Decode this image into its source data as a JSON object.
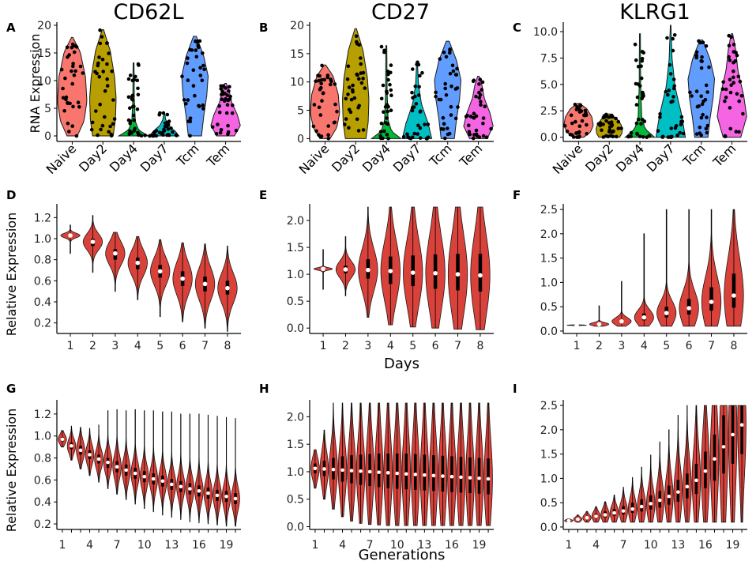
{
  "chart_data": [
    {
      "panel": "A",
      "type": "violin",
      "title": "CD62L",
      "ylabel": "RNA Expression",
      "categories": [
        "Naive",
        "Day2",
        "Day4",
        "Day7",
        "Tcm",
        "Tem"
      ],
      "colors": [
        "#F8766D",
        "#B79F00",
        "#00BA38",
        "#00BFC4",
        "#619CFF",
        "#F564E3"
      ],
      "ylim": [
        -1,
        20
      ],
      "yticks": [
        0,
        5,
        10,
        15,
        20
      ],
      "max_values": [
        17.8,
        19.2,
        13.2,
        4.2,
        18,
        9.5
      ]
    },
    {
      "panel": "B",
      "type": "violin",
      "title": "CD27",
      "ylabel": "",
      "categories": [
        "Naive",
        "Day2",
        "Day4",
        "Day7",
        "Tcm",
        "Tem"
      ],
      "colors": [
        "#F8766D",
        "#B79F00",
        "#00BA38",
        "#00BFC4",
        "#619CFF",
        "#F564E3"
      ],
      "ylim": [
        -0.5,
        20
      ],
      "yticks": [
        0,
        5,
        10,
        15,
        20
      ],
      "max_values": [
        13,
        19.4,
        16.4,
        13.6,
        17.2,
        11
      ]
    },
    {
      "panel": "C",
      "type": "violin",
      "title": "KLRG1",
      "ylabel": "",
      "categories": [
        "Naive",
        "Day2",
        "Day4",
        "Day7",
        "Tcm",
        "Tem"
      ],
      "colors": [
        "#F8766D",
        "#B79F00",
        "#00BA38",
        "#00BFC4",
        "#619CFF",
        "#F564E3"
      ],
      "ylim": [
        -0.4,
        10.6
      ],
      "yticks": [
        0.0,
        2.5,
        5.0,
        7.5,
        10.0
      ],
      "ytick_labels": [
        "0.0",
        "2.5",
        "5.0",
        "7.5",
        "10.0"
      ],
      "max_values": [
        3.2,
        2.2,
        9.8,
        10.6,
        9.2,
        9.8
      ]
    },
    {
      "panel": "D",
      "type": "violin",
      "title": "",
      "ylabel": "Relative Expression",
      "xlabel": "",
      "categories": [
        "1",
        "2",
        "3",
        "4",
        "5",
        "6",
        "7",
        "8"
      ],
      "ylim": [
        0.1,
        1.3
      ],
      "yticks": [
        0.2,
        0.4,
        0.6,
        0.8,
        1.0,
        1.2
      ],
      "ytick_labels": [
        "0.2",
        "0.4",
        "0.6",
        "0.8",
        "1.0",
        "1.2"
      ],
      "medians": [
        1.03,
        0.97,
        0.86,
        0.77,
        0.69,
        0.62,
        0.57,
        0.53
      ],
      "q1": [
        1.02,
        0.93,
        0.8,
        0.71,
        0.63,
        0.55,
        0.5,
        0.47
      ],
      "q3": [
        1.04,
        1.0,
        0.9,
        0.82,
        0.75,
        0.69,
        0.64,
        0.6
      ],
      "min": [
        0.86,
        0.68,
        0.5,
        0.42,
        0.26,
        0.21,
        0.15,
        0.12
      ],
      "max": [
        1.13,
        1.22,
        1.06,
        1.02,
        0.99,
        0.96,
        0.95,
        0.93
      ]
    },
    {
      "panel": "E",
      "type": "violin",
      "title": "",
      "ylabel": "",
      "xlabel": "Days",
      "categories": [
        "1",
        "2",
        "3",
        "4",
        "5",
        "6",
        "7",
        "8"
      ],
      "ylim": [
        -0.1,
        2.25
      ],
      "yticks": [
        0.0,
        0.5,
        1.0,
        1.5,
        2.0
      ],
      "ytick_labels": [
        "0.0",
        "0.5",
        "1.0",
        "1.5",
        "2.0"
      ],
      "medians": [
        1.1,
        1.09,
        1.08,
        1.06,
        1.03,
        1.02,
        1.0,
        0.98
      ],
      "q1": [
        1.09,
        1.02,
        0.92,
        0.82,
        0.78,
        0.73,
        0.7,
        0.68
      ],
      "q3": [
        1.11,
        1.16,
        1.28,
        1.33,
        1.35,
        1.37,
        1.38,
        1.38
      ],
      "min": [
        0.72,
        0.6,
        0.2,
        0.06,
        0.02,
        0.0,
        -0.02,
        -0.03
      ],
      "max": [
        1.46,
        1.7,
        2.25,
        2.25,
        2.25,
        2.25,
        2.25,
        2.25
      ]
    },
    {
      "panel": "F",
      "type": "violin",
      "title": "",
      "ylabel": "",
      "xlabel": "",
      "categories": [
        "1",
        "2",
        "3",
        "4",
        "5",
        "6",
        "7",
        "8"
      ],
      "ylim": [
        -0.05,
        2.55
      ],
      "yticks": [
        0.0,
        0.5,
        1.0,
        1.5,
        2.0,
        2.5
      ],
      "ytick_labels": [
        "0.0",
        "0.5",
        "1.0",
        "1.5",
        "2.0",
        "2.5"
      ],
      "medians": [
        0.12,
        0.14,
        0.2,
        0.28,
        0.37,
        0.47,
        0.6,
        0.73
      ],
      "q1": [
        0.12,
        0.13,
        0.17,
        0.22,
        0.28,
        0.34,
        0.42,
        0.48
      ],
      "q3": [
        0.12,
        0.16,
        0.24,
        0.36,
        0.5,
        0.66,
        0.9,
        1.18
      ],
      "min": [
        0.11,
        0.1,
        0.1,
        0.1,
        0.1,
        0.1,
        0.1,
        0.1
      ],
      "max": [
        0.15,
        0.52,
        1.02,
        2.0,
        2.5,
        2.5,
        2.5,
        2.5
      ]
    },
    {
      "panel": "G",
      "type": "violin",
      "title": "",
      "ylabel": "Relative Expression",
      "xlabel": "",
      "categories": [
        "1",
        "2",
        "3",
        "4",
        "5",
        "6",
        "7",
        "8",
        "9",
        "10",
        "11",
        "12",
        "13",
        "14",
        "15",
        "16",
        "17",
        "18",
        "19",
        "20"
      ],
      "xtick_labels": [
        "1",
        "4",
        "7",
        "10",
        "13",
        "16",
        "19"
      ],
      "xtick_positions": [
        1,
        4,
        7,
        10,
        13,
        16,
        19
      ],
      "ylim": [
        0.15,
        1.3
      ],
      "yticks": [
        0.2,
        0.4,
        0.6,
        0.8,
        1.0,
        1.2
      ],
      "ytick_labels": [
        "0.2",
        "0.4",
        "0.6",
        "0.8",
        "1.0",
        "1.2"
      ],
      "medians": [
        0.97,
        0.91,
        0.87,
        0.83,
        0.79,
        0.76,
        0.72,
        0.69,
        0.66,
        0.63,
        0.61,
        0.59,
        0.56,
        0.54,
        0.52,
        0.5,
        0.48,
        0.46,
        0.45,
        0.43
      ],
      "q1": [
        0.95,
        0.88,
        0.83,
        0.79,
        0.75,
        0.71,
        0.67,
        0.64,
        0.61,
        0.58,
        0.56,
        0.54,
        0.51,
        0.49,
        0.47,
        0.45,
        0.43,
        0.41,
        0.4,
        0.38
      ],
      "q3": [
        0.99,
        0.94,
        0.91,
        0.87,
        0.83,
        0.8,
        0.77,
        0.74,
        0.71,
        0.68,
        0.66,
        0.64,
        0.61,
        0.59,
        0.57,
        0.55,
        0.53,
        0.51,
        0.5,
        0.48
      ],
      "min": [
        0.9,
        0.78,
        0.7,
        0.64,
        0.58,
        0.52,
        0.47,
        0.42,
        0.38,
        0.34,
        0.31,
        0.28,
        0.26,
        0.24,
        0.22,
        0.21,
        0.2,
        0.19,
        0.18,
        0.18
      ],
      "max": [
        1.05,
        1.09,
        1.08,
        1.07,
        1.1,
        1.23,
        1.24,
        1.23,
        1.24,
        1.23,
        1.23,
        1.22,
        1.22,
        1.2,
        1.2,
        1.2,
        1.19,
        1.18,
        1.17,
        1.16
      ]
    },
    {
      "panel": "H",
      "type": "violin",
      "title": "",
      "ylabel": "",
      "xlabel": "Generations",
      "categories": [
        "1",
        "2",
        "3",
        "4",
        "5",
        "6",
        "7",
        "8",
        "9",
        "10",
        "11",
        "12",
        "13",
        "14",
        "15",
        "16",
        "17",
        "18",
        "19",
        "20"
      ],
      "xtick_labels": [
        "1",
        "4",
        "7",
        "10",
        "13",
        "16",
        "19"
      ],
      "xtick_positions": [
        1,
        4,
        7,
        10,
        13,
        16,
        19
      ],
      "ylim": [
        -0.05,
        2.25
      ],
      "yticks": [
        0.0,
        0.5,
        1.0,
        1.5,
        2.0
      ],
      "ytick_labels": [
        "0.0",
        "0.5",
        "1.0",
        "1.5",
        "2.0"
      ],
      "medians": [
        1.06,
        1.05,
        1.04,
        1.03,
        1.02,
        1.01,
        1.0,
        0.99,
        0.98,
        0.97,
        0.96,
        0.95,
        0.94,
        0.93,
        0.92,
        0.91,
        0.9,
        0.89,
        0.88,
        0.87
      ],
      "q1": [
        0.97,
        0.92,
        0.86,
        0.82,
        0.79,
        0.76,
        0.74,
        0.72,
        0.7,
        0.69,
        0.68,
        0.67,
        0.66,
        0.65,
        0.64,
        0.63,
        0.62,
        0.61,
        0.6,
        0.59
      ],
      "q3": [
        1.15,
        1.2,
        1.25,
        1.28,
        1.3,
        1.31,
        1.32,
        1.33,
        1.33,
        1.33,
        1.33,
        1.32,
        1.31,
        1.3,
        1.29,
        1.28,
        1.27,
        1.26,
        1.25,
        1.24
      ],
      "min": [
        0.7,
        0.5,
        0.32,
        0.18,
        0.1,
        0.06,
        0.04,
        0.03,
        0.02,
        0.02,
        0.02,
        0.02,
        0.02,
        0.02,
        0.02,
        0.02,
        0.02,
        0.02,
        0.02,
        0.02
      ],
      "max": [
        1.4,
        1.76,
        2.25,
        2.25,
        2.25,
        2.25,
        2.25,
        2.25,
        2.25,
        2.25,
        2.25,
        2.25,
        2.25,
        2.25,
        2.25,
        2.25,
        2.25,
        2.25,
        2.25,
        2.25
      ]
    },
    {
      "panel": "I",
      "type": "violin",
      "title": "",
      "ylabel": "",
      "xlabel": "",
      "categories": [
        "1",
        "2",
        "3",
        "4",
        "5",
        "6",
        "7",
        "8",
        "9",
        "10",
        "11",
        "12",
        "13",
        "14",
        "15",
        "16",
        "17",
        "18",
        "19",
        "20"
      ],
      "xtick_labels": [
        "1",
        "4",
        "7",
        "10",
        "13",
        "16",
        "19"
      ],
      "xtick_positions": [
        1,
        4,
        7,
        10,
        13,
        16,
        19
      ],
      "ylim": [
        -0.05,
        2.55
      ],
      "yticks": [
        0.0,
        0.5,
        1.0,
        1.5,
        2.0,
        2.5
      ],
      "ytick_labels": [
        "0.0",
        "0.5",
        "1.0",
        "1.5",
        "2.0",
        "2.5"
      ],
      "medians": [
        0.13,
        0.16,
        0.19,
        0.22,
        0.25,
        0.29,
        0.33,
        0.37,
        0.42,
        0.48,
        0.55,
        0.63,
        0.72,
        0.83,
        0.96,
        1.15,
        1.4,
        1.65,
        1.9,
        2.1
      ],
      "q1": [
        0.12,
        0.14,
        0.16,
        0.18,
        0.2,
        0.23,
        0.26,
        0.29,
        0.32,
        0.36,
        0.4,
        0.46,
        0.52,
        0.59,
        0.68,
        0.8,
        0.95,
        1.1,
        1.3,
        1.5
      ],
      "q3": [
        0.14,
        0.18,
        0.22,
        0.27,
        0.32,
        0.37,
        0.43,
        0.5,
        0.57,
        0.65,
        0.74,
        0.85,
        0.97,
        1.1,
        1.3,
        1.55,
        1.9,
        2.3,
        2.5,
        2.5
      ],
      "min": [
        0.11,
        0.1,
        0.1,
        0.1,
        0.1,
        0.1,
        0.1,
        0.1,
        0.1,
        0.1,
        0.1,
        0.1,
        0.1,
        0.1,
        0.1,
        0.1,
        0.1,
        0.1,
        0.1,
        0.1
      ],
      "max": [
        0.17,
        0.25,
        0.32,
        0.42,
        0.52,
        0.66,
        0.82,
        1.02,
        1.23,
        1.48,
        1.75,
        2.0,
        2.3,
        2.5,
        2.5,
        2.5,
        2.5,
        2.5,
        2.5,
        2.5
      ]
    }
  ],
  "panel_labels": [
    "A",
    "B",
    "C",
    "D",
    "E",
    "F",
    "G",
    "H",
    "I"
  ],
  "colors": {
    "violin_red": "#D9423A",
    "violin_stroke": "#1a1a1a",
    "median_dot": "#ffffff",
    "box": "#000000"
  }
}
